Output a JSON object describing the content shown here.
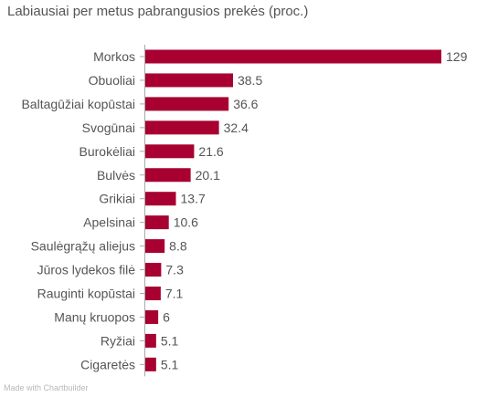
{
  "chart_data": {
    "type": "bar",
    "orientation": "horizontal",
    "title": "Labiausiai per metus pabrangusios prekės (proc.)",
    "categories": [
      "Morkos",
      "Obuoliai",
      "Baltagūžiai kopūstai",
      "Svogūnai",
      "Burokėliai",
      "Bulvės",
      "Grikiai",
      "Apelsinai",
      "Saulėgrąžų aliejus",
      "Jūros lydekos filė",
      "Rauginti kopūstai",
      "Manų kruopos",
      "Ryžiai",
      "Cigaretės"
    ],
    "values": [
      129,
      38.5,
      36.6,
      32.4,
      21.6,
      20.1,
      13.7,
      10.6,
      8.8,
      7.3,
      7.1,
      6,
      5.1,
      5.1
    ],
    "value_labels": [
      "129",
      "38.5",
      "36.6",
      "32.4",
      "21.6",
      "20.1",
      "13.7",
      "10.6",
      "8.8",
      "7.3",
      "7.1",
      "6",
      "5.1",
      "5.1"
    ],
    "xlim": [
      0,
      129
    ],
    "grid": false,
    "legend": "none",
    "colors": {
      "bar": "#a80030",
      "axis": "#aaaaaa",
      "label": "#555555",
      "value": "#555555"
    }
  },
  "footer": {
    "credit": "Made with Chartbuilder"
  }
}
